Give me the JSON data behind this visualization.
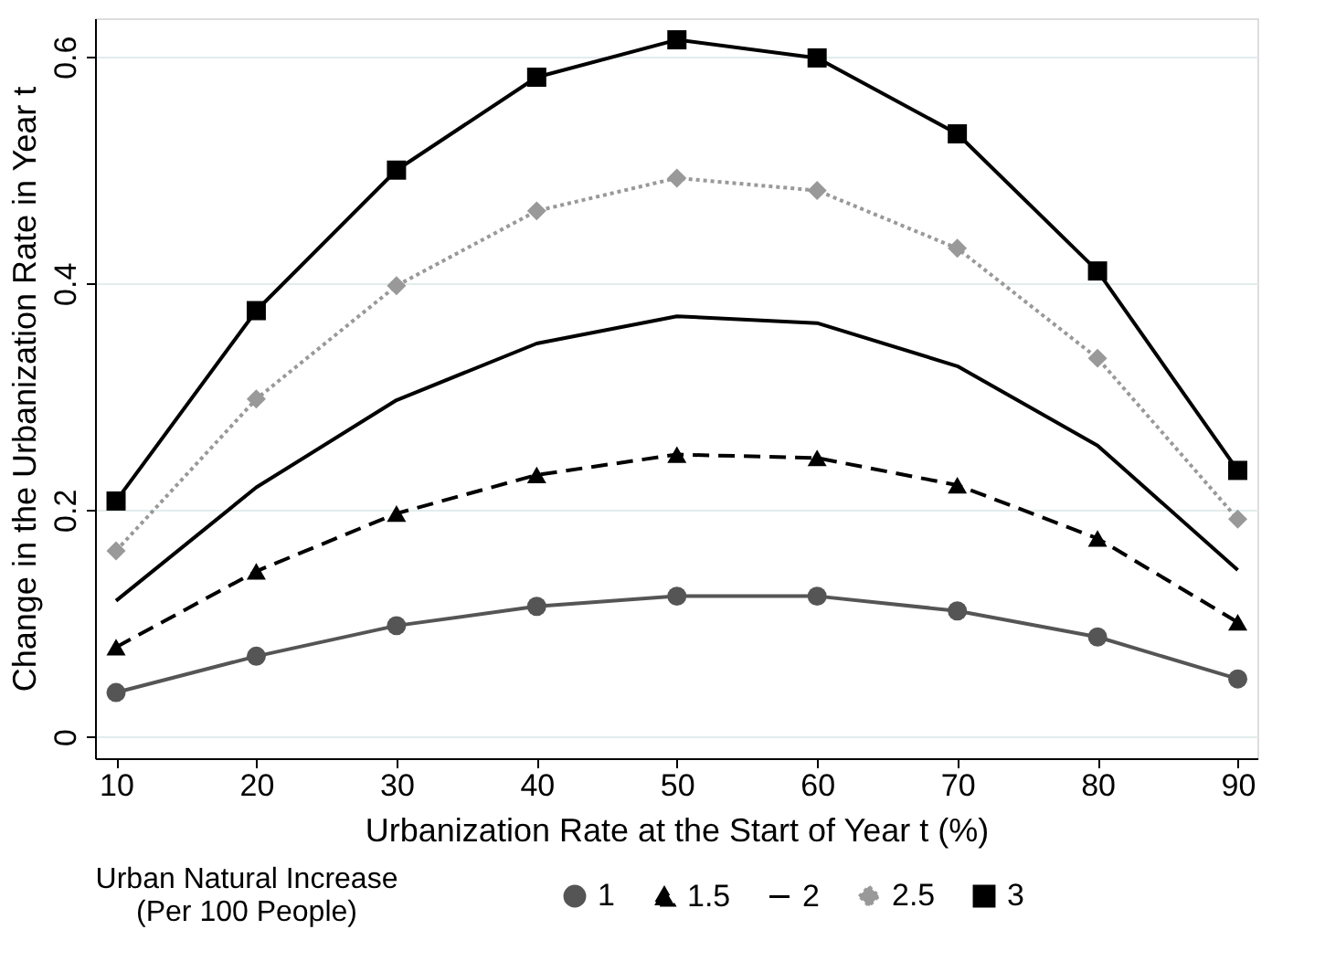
{
  "chart_data": {
    "type": "line",
    "xlabel": "Urbanization Rate at the Start of Year t (%)",
    "ylabel": "Change in the Urbanization Rate in Year t",
    "legend_title": "Urban Natural Increase\n(Per 100 People)",
    "legend": "bottom",
    "grid": "y",
    "x": [
      10,
      20,
      30,
      40,
      50,
      60,
      70,
      80,
      90
    ],
    "xlim": [
      8.5,
      91.4
    ],
    "xticks": [
      10,
      20,
      30,
      40,
      50,
      60,
      70,
      80,
      90
    ],
    "ylim": [
      -0.019,
      0.634
    ],
    "yticks": [
      0,
      0.2,
      0.4,
      0.6
    ],
    "series": [
      {
        "name": "1",
        "color": "#555555",
        "marker": "circle",
        "line_style": "solid",
        "values": [
          0.039,
          0.071,
          0.098,
          0.115,
          0.124,
          0.124,
          0.111,
          0.088,
          0.051
        ]
      },
      {
        "name": "1.5",
        "color": "#000000",
        "marker": "triangle",
        "line_style": "dashed",
        "values": [
          0.079,
          0.146,
          0.197,
          0.231,
          0.249,
          0.246,
          0.222,
          0.175,
          0.101
        ]
      },
      {
        "name": "2",
        "color": "#000000",
        "marker": "none",
        "line_style": "solid",
        "values": [
          0.12,
          0.22,
          0.297,
          0.347,
          0.371,
          0.365,
          0.327,
          0.257,
          0.147
        ]
      },
      {
        "name": "2.5",
        "color": "#999999",
        "marker": "diamond",
        "line_style": "dotted",
        "values": [
          0.164,
          0.298,
          0.398,
          0.464,
          0.493,
          0.482,
          0.431,
          0.334,
          0.192
        ]
      },
      {
        "name": "3",
        "color": "#000000",
        "marker": "square",
        "line_style": "solid",
        "values": [
          0.208,
          0.376,
          0.5,
          0.582,
          0.615,
          0.599,
          0.532,
          0.411,
          0.235
        ]
      }
    ]
  }
}
